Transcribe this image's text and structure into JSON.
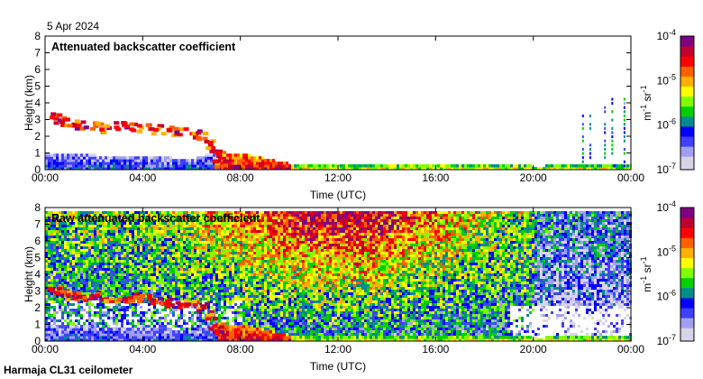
{
  "date_label": "5 Apr 2024",
  "footer_label": "Harmaja CL31 ceilometer",
  "chart_data": [
    {
      "type": "heatmap",
      "title": "Attenuated backscatter coefficient",
      "xlabel": "Time (UTC)",
      "ylabel": "Height (km)",
      "xlim": [
        0,
        24
      ],
      "ylim": [
        0,
        8
      ],
      "x_ticks": [
        "00:00",
        "04:00",
        "08:00",
        "12:00",
        "16:00",
        "20:00",
        "00:00"
      ],
      "y_ticks": [
        "0",
        "1",
        "2",
        "3",
        "4",
        "5",
        "6",
        "7",
        "8"
      ],
      "colorbar": {
        "label": "m-1 sr-1",
        "label_main": "m",
        "exp1": "-1",
        "unit2": " sr",
        "exp2": "-1",
        "ticks": [
          {
            "base": "10",
            "exp": "-7"
          },
          {
            "base": "10",
            "exp": "-6"
          },
          {
            "base": "10",
            "exp": "-5"
          },
          {
            "base": "10",
            "exp": "-4"
          }
        ],
        "range": [
          1e-07,
          0.0001
        ]
      },
      "cloud_layer": [
        [
          0.3,
          3.2
        ],
        [
          0.6,
          3.0
        ],
        [
          1.0,
          2.8
        ],
        [
          1.5,
          2.8
        ],
        [
          2.0,
          2.8
        ],
        [
          2.4,
          2.5
        ],
        [
          3.0,
          2.7
        ],
        [
          3.5,
          2.7
        ],
        [
          4.0,
          2.6
        ],
        [
          4.5,
          2.5
        ],
        [
          5.0,
          2.4
        ],
        [
          5.5,
          2.35
        ],
        [
          6.0,
          2.25
        ],
        [
          6.4,
          2.1
        ],
        [
          6.7,
          1.6
        ],
        [
          6.9,
          1.0
        ],
        [
          7.1,
          0.5
        ]
      ],
      "surface_layer_top_km": [
        [
          0,
          0.9
        ],
        [
          2,
          0.8
        ],
        [
          4,
          0.7
        ],
        [
          6,
          0.6
        ],
        [
          7,
          1.0
        ],
        [
          8,
          0.9
        ],
        [
          9,
          0.6
        ],
        [
          10,
          0.3
        ],
        [
          12,
          0.25
        ],
        [
          14,
          0.25
        ],
        [
          16,
          0.3
        ],
        [
          18,
          0.3
        ],
        [
          20,
          0.15
        ],
        [
          22,
          0.2
        ],
        [
          24,
          0.2
        ]
      ],
      "precip_streaks_hours": [
        22.0,
        22.3,
        22.9,
        23.2,
        23.7
      ]
    },
    {
      "type": "heatmap",
      "title": "Raw attenuated backscatter coefficient",
      "xlabel": "Time (UTC)",
      "ylabel": "Height (km)",
      "xlim": [
        0,
        24
      ],
      "ylim": [
        0,
        8
      ],
      "x_ticks": [
        "00:00",
        "04:00",
        "08:00",
        "12:00",
        "16:00",
        "20:00",
        "00:00"
      ],
      "y_ticks": [
        "0",
        "1",
        "2",
        "3",
        "4",
        "5",
        "6",
        "7",
        "8"
      ],
      "colorbar": {
        "label": "m-1 sr-1",
        "label_main": "m",
        "exp1": "-1",
        "unit2": " sr",
        "exp2": "-1",
        "ticks": [
          {
            "base": "10",
            "exp": "-7"
          },
          {
            "base": "10",
            "exp": "-6"
          },
          {
            "base": "10",
            "exp": "-5"
          },
          {
            "base": "10",
            "exp": "-4"
          }
        ],
        "range": [
          1e-07,
          0.0001
        ]
      }
    }
  ],
  "colors": {
    "colormap": [
      "#d8d4e8",
      "#a0a0f0",
      "#4040ff",
      "#0000ff",
      "#008c8c",
      "#00d000",
      "#80ff00",
      "#ffff00",
      "#ffb000",
      "#ff6000",
      "#ff0000",
      "#c00030",
      "#800080"
    ]
  }
}
